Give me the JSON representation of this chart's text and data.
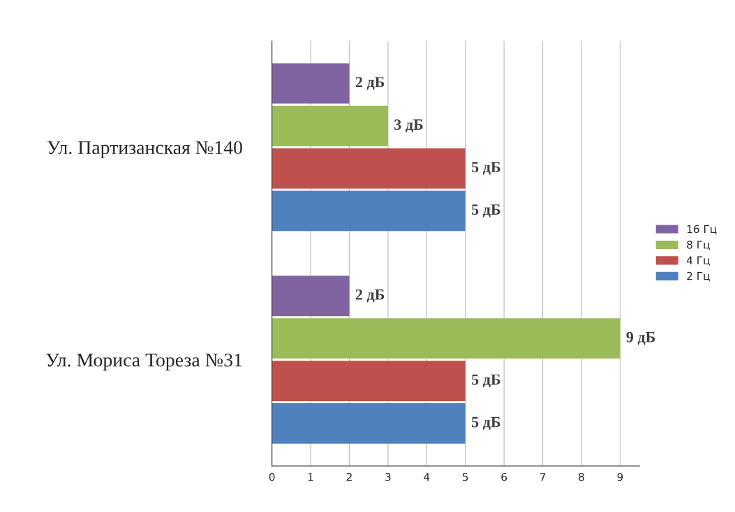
{
  "chart_data": {
    "type": "bar",
    "orientation": "horizontal",
    "categories": [
      "Ул. Партизанская №140",
      "Ул. Мориса Тореза №31"
    ],
    "series": [
      {
        "name": "16 Гц",
        "color": "#8064a2",
        "values": [
          2,
          2
        ],
        "value_labels": [
          "2 дБ",
          "2 дБ"
        ]
      },
      {
        "name": "8 Гц",
        "color": "#9bbb59",
        "values": [
          3,
          9
        ],
        "value_labels": [
          "3 дБ",
          "9 дБ"
        ]
      },
      {
        "name": "4 Гц",
        "color": "#c0504d",
        "values": [
          5,
          5
        ],
        "value_labels": [
          "5 дБ",
          "5 дБ"
        ]
      },
      {
        "name": "2 Гц",
        "color": "#4f81bd",
        "values": [
          5,
          5
        ],
        "value_labels": [
          "5 дБ",
          "5 дБ"
        ]
      }
    ],
    "xlim": [
      0,
      9.5
    ],
    "xticks": [
      0,
      1,
      2,
      3,
      4,
      5,
      6,
      7,
      8,
      9
    ],
    "grid": "x",
    "legend": "right"
  }
}
